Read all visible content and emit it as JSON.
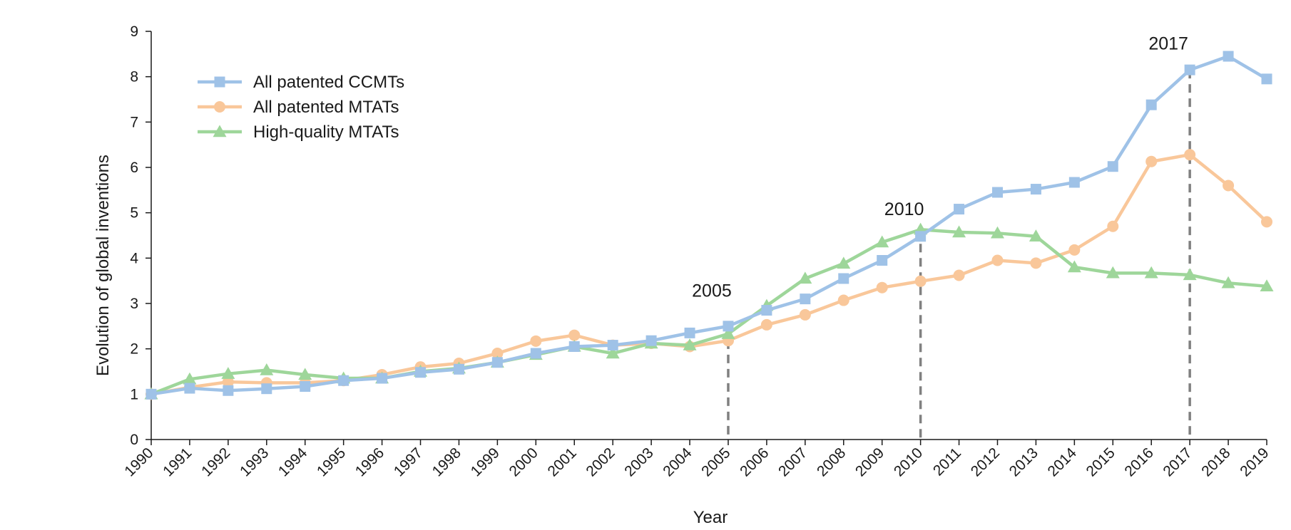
{
  "chart_data": {
    "type": "line",
    "title": "",
    "xlabel": "Year",
    "ylabel": "Evolution of global inventions",
    "ylim": [
      0,
      9
    ],
    "yticks": [
      0,
      1,
      2,
      3,
      4,
      5,
      6,
      7,
      8,
      9
    ],
    "grid": false,
    "legend_position": "top-left",
    "categories": [
      "1990",
      "1991",
      "1992",
      "1993",
      "1994",
      "1995",
      "1996",
      "1997",
      "1998",
      "1999",
      "2000",
      "2001",
      "2002",
      "2003",
      "2004",
      "2005",
      "2006",
      "2007",
      "2008",
      "2009",
      "2010",
      "2011",
      "2012",
      "2013",
      "2014",
      "2015",
      "2016",
      "2017",
      "2018",
      "2019"
    ],
    "series": [
      {
        "name": "All patented CCMTs",
        "marker": "square",
        "color": "#9fc2e7",
        "values": [
          1.0,
          1.13,
          1.08,
          1.12,
          1.17,
          1.3,
          1.35,
          1.48,
          1.55,
          1.7,
          1.9,
          2.05,
          2.08,
          2.18,
          2.35,
          2.5,
          2.85,
          3.1,
          3.55,
          3.95,
          4.48,
          5.08,
          5.45,
          5.52,
          5.67,
          6.02,
          7.38,
          8.15,
          8.45,
          7.95
        ]
      },
      {
        "name": "All patented MTATs",
        "marker": "circle",
        "color": "#f9c79a",
        "values": [
          1.0,
          1.15,
          1.27,
          1.25,
          1.25,
          1.3,
          1.43,
          1.6,
          1.68,
          1.9,
          2.17,
          2.3,
          2.08,
          2.12,
          2.05,
          2.18,
          2.53,
          2.75,
          3.07,
          3.35,
          3.49,
          3.62,
          3.95,
          3.89,
          4.18,
          4.7,
          6.13,
          6.28,
          5.6,
          4.8
        ]
      },
      {
        "name": "High-quality MTATs",
        "marker": "triangle",
        "color": "#9ed69a",
        "values": [
          1.0,
          1.33,
          1.45,
          1.53,
          1.43,
          1.35,
          1.35,
          1.5,
          1.57,
          1.7,
          1.87,
          2.05,
          1.9,
          2.12,
          2.08,
          2.33,
          2.95,
          3.55,
          3.88,
          4.35,
          4.63,
          4.57,
          4.55,
          4.48,
          3.8,
          3.67,
          3.67,
          3.63,
          3.45,
          3.38
        ]
      }
    ],
    "annotations": [
      {
        "label": "2005",
        "year": "2005"
      },
      {
        "label": "2010",
        "year": "2010"
      },
      {
        "label": "2017",
        "year": "2017"
      }
    ]
  }
}
